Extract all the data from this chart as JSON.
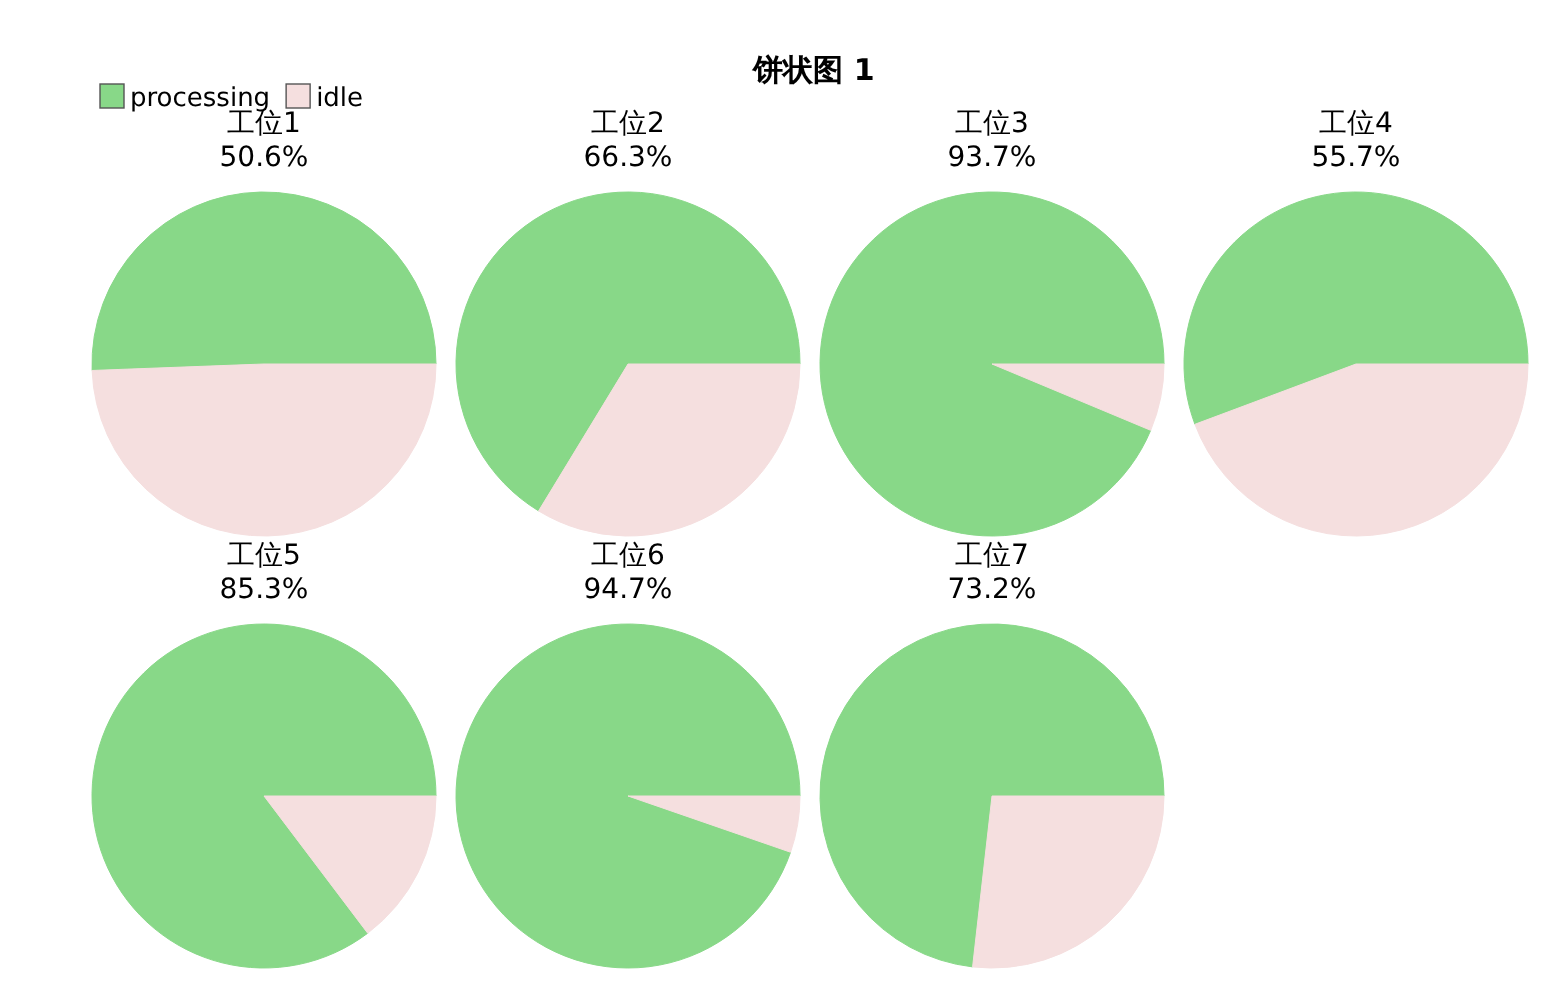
{
  "chart_data": [
    {
      "type": "pie",
      "title": "饼状图 1",
      "subtitle": "工位1",
      "annotations": [
        "50.6%"
      ],
      "categories": [
        "processing",
        "idle"
      ],
      "values": [
        50.6,
        49.4
      ],
      "colors": [
        "#88d888",
        "#f5dfdf"
      ],
      "legend": "top left"
    },
    {
      "type": "pie",
      "subtitle": "工位2",
      "annotations": [
        "66.3%"
      ],
      "categories": [
        null,
        null
      ],
      "values": [
        66.3,
        33.7
      ],
      "colors": [
        "#88d888",
        "#f5dfdf"
      ]
    },
    {
      "type": "pie",
      "subtitle": "工位3",
      "annotations": [
        "93.7%"
      ],
      "categories": [
        null,
        null
      ],
      "values": [
        93.7,
        6.3
      ],
      "colors": [
        "#88d888",
        "#f5dfdf"
      ]
    },
    {
      "type": "pie",
      "subtitle": "工位4",
      "annotations": [
        "55.7%"
      ],
      "categories": [
        null,
        null
      ],
      "values": [
        55.7,
        44.3
      ],
      "colors": [
        "#88d888",
        "#f5dfdf"
      ]
    },
    {
      "type": "pie",
      "subtitle": "工位5",
      "annotations": [
        "85.3%"
      ],
      "categories": [
        null,
        null
      ],
      "values": [
        85.3,
        14.7
      ],
      "colors": [
        "#88d888",
        "#f5dfdf"
      ]
    },
    {
      "type": "pie",
      "subtitle": "工位6",
      "annotations": [
        "94.7%"
      ],
      "categories": [
        null,
        null
      ],
      "values": [
        94.7,
        5.3
      ],
      "colors": [
        "#88d888",
        "#f5dfdf"
      ]
    },
    {
      "type": "pie",
      "subtitle": "工位7",
      "annotations": [
        "73.2%"
      ],
      "categories": [
        null,
        null
      ],
      "values": [
        73.2,
        26.8
      ],
      "colors": [
        "#88d888",
        "#f5dfdf"
      ]
    }
  ]
}
